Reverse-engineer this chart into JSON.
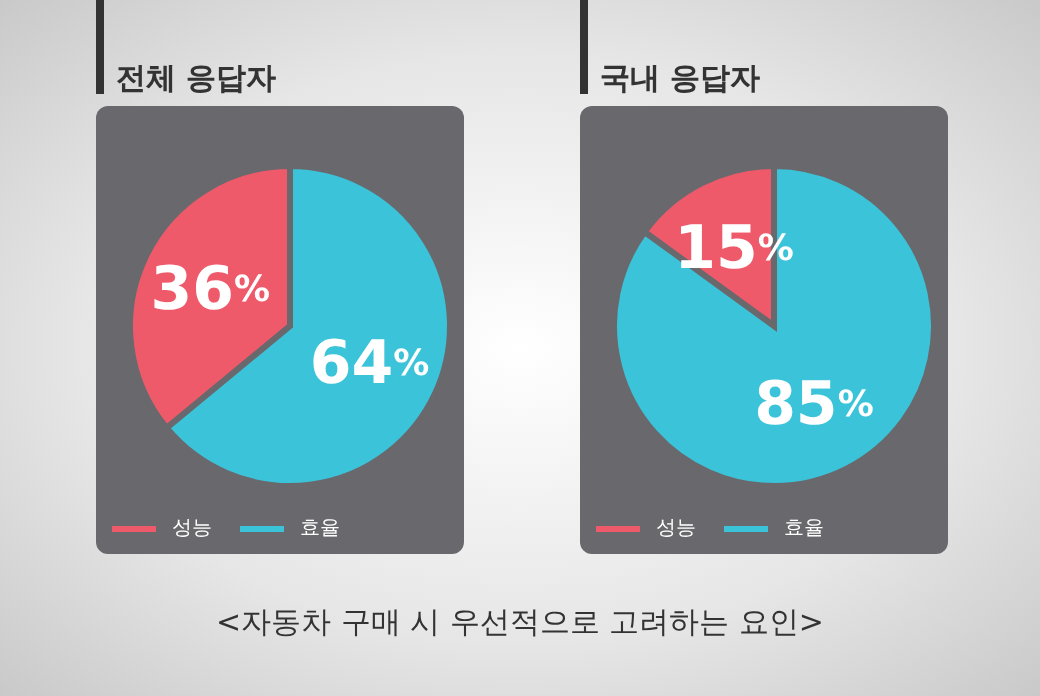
{
  "chart_data": [
    {
      "type": "pie",
      "title": "전체 응답자",
      "categories": [
        "성능",
        "효율"
      ],
      "values": [
        36,
        64
      ],
      "colors": [
        "#ef5a6a",
        "#3bc3d9"
      ],
      "value_labels": [
        "36%",
        "64%"
      ],
      "legend": "bottom left"
    },
    {
      "type": "pie",
      "title": "국내 응답자",
      "categories": [
        "성능",
        "효율"
      ],
      "values": [
        15,
        85
      ],
      "colors": [
        "#ef5a6a",
        "#3bc3d9"
      ],
      "value_labels": [
        "15%",
        "85%"
      ],
      "legend": "bottom left",
      "annotations": [
        "<자동차 구매 시 우선적으로 고려하는 요인>"
      ]
    }
  ]
}
